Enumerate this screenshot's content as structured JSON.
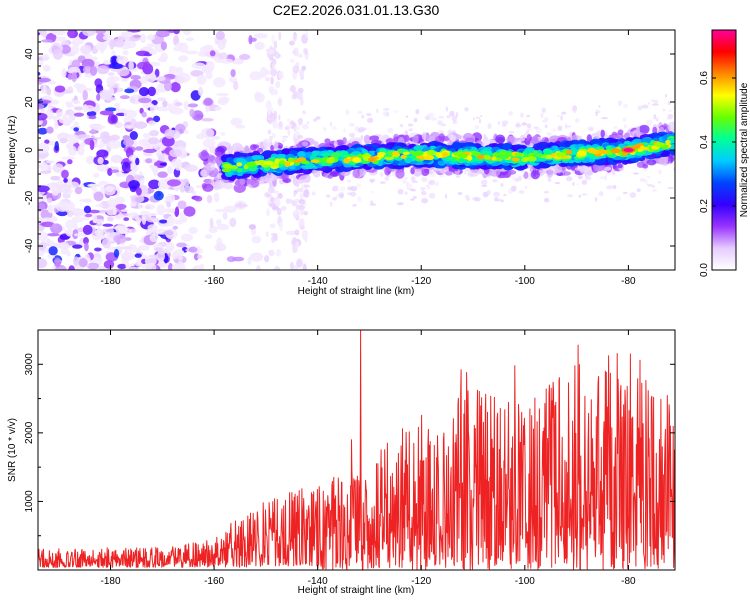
{
  "page_title": "C2E2.2026.031.01.13.G30",
  "chart_data": [
    {
      "type": "heatmap",
      "title": "C2E2.2026.031.01.13.G30",
      "xlabel": "Height of straight line (km)",
      "ylabel": "Frequency (Hz)",
      "xlim": [
        -194,
        -71
      ],
      "ylim": [
        -50,
        50
      ],
      "x_ticks": [
        -180,
        -160,
        -140,
        -120,
        -100,
        -80
      ],
      "y_ticks": [
        -40,
        -20,
        0,
        20,
        40
      ],
      "colorbar": {
        "label": "Normalized spectral amplitude",
        "range": [
          0.0,
          0.75
        ],
        "ticks": [
          0.0,
          0.2,
          0.4,
          0.6
        ],
        "colors": [
          "#ffffff",
          "#e6ccff",
          "#9933ff",
          "#3300ff",
          "#0044ff",
          "#00ccff",
          "#00ff99",
          "#66ff00",
          "#ffff00",
          "#ff8800",
          "#ff0000",
          "#ff0099"
        ]
      },
      "features": {
        "noise_region_x": [
          -194,
          -150
        ],
        "noise_amplitude": 0.15,
        "signal_start_x": -162,
        "signal_center_hz_at": [
          [
            -162,
            -8
          ],
          [
            -140,
            -4
          ],
          [
            -120,
            -2
          ],
          [
            -100,
            -3
          ],
          [
            -80,
            0
          ],
          [
            -72,
            3
          ]
        ],
        "signal_peak": {
          "x": -80,
          "y": 0,
          "amplitude": 0.75
        }
      }
    },
    {
      "type": "line",
      "xlabel": "Height of straight line (km)",
      "ylabel": "SNR (10 * v/v)",
      "xlim": [
        -194,
        -71
      ],
      "ylim": [
        0,
        3500
      ],
      "x_ticks": [
        -180,
        -160,
        -140,
        -120,
        -100,
        -80
      ],
      "y_ticks": [
        1000,
        2000,
        3000
      ],
      "color": "#ee2222",
      "envelope": [
        {
          "x": -194,
          "y": 250
        },
        {
          "x": -170,
          "y": 270
        },
        {
          "x": -160,
          "y": 380
        },
        {
          "x": -150,
          "y": 700
        },
        {
          "x": -140,
          "y": 900
        },
        {
          "x": -130,
          "y": 1200
        },
        {
          "x": -120,
          "y": 1700
        },
        {
          "x": -110,
          "y": 2000
        },
        {
          "x": -100,
          "y": 1800
        },
        {
          "x": -90,
          "y": 2300
        },
        {
          "x": -80,
          "y": 2400
        },
        {
          "x": -71,
          "y": 1800
        }
      ],
      "peaks": [
        {
          "x": -150.5,
          "y": 980
        },
        {
          "x": -141.8,
          "y": 780
        },
        {
          "x": -138.3,
          "y": 920
        },
        {
          "x": -133.5,
          "y": 1900
        },
        {
          "x": -131.7,
          "y": 3500
        },
        {
          "x": -128.4,
          "y": 1550
        },
        {
          "x": -118.6,
          "y": 2050
        },
        {
          "x": -112.3,
          "y": 2920
        },
        {
          "x": -111.2,
          "y": 2880
        },
        {
          "x": -109.1,
          "y": 2620
        },
        {
          "x": -101.9,
          "y": 2980
        },
        {
          "x": -97.2,
          "y": 2350
        },
        {
          "x": -89.7,
          "y": 3280
        },
        {
          "x": -84.4,
          "y": 2900
        },
        {
          "x": -79.6,
          "y": 3150
        },
        {
          "x": -77.8,
          "y": 3060
        },
        {
          "x": -71.9,
          "y": 2100
        }
      ]
    }
  ]
}
